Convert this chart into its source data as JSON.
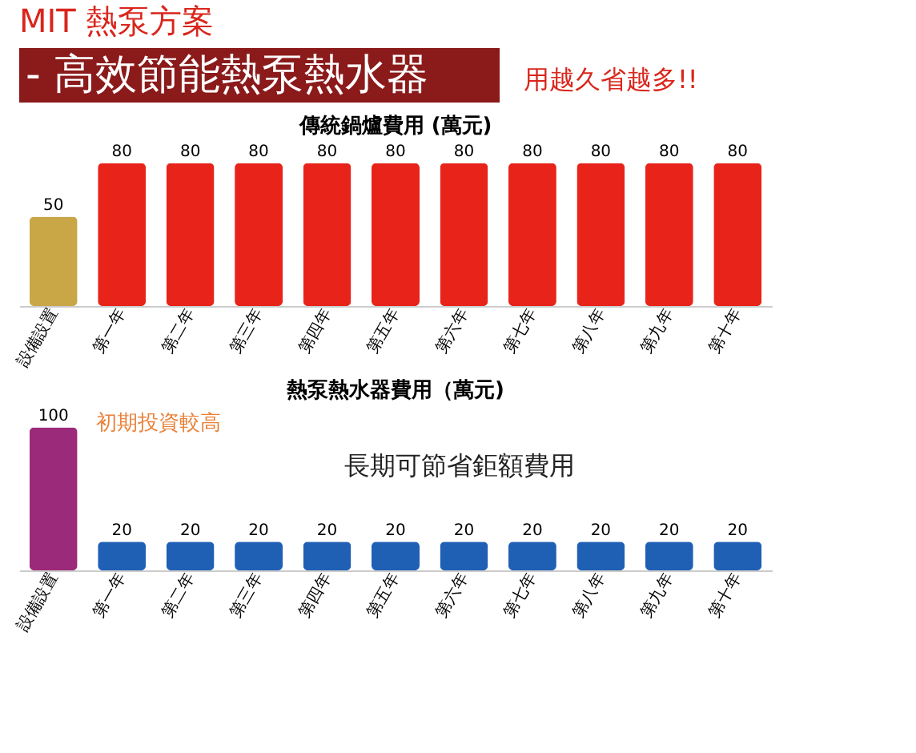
{
  "chart_data": [
    {
      "type": "other",
      "title": "MIT 熱泵方案",
      "subtitle": "- 高效節能熱泵熱水器",
      "annotations": [
        "用越久省越多!!"
      ]
    },
    {
      "type": "bar",
      "title": "傳統鍋爐費用 (萬元)",
      "categories": [
        "設備設置",
        "第一年",
        "第二年",
        "第三年",
        "第四年",
        "第五年",
        "第六年",
        "第七年",
        "第八年",
        "第九年",
        "第十年"
      ],
      "values": [
        50,
        80,
        80,
        80,
        80,
        80,
        80,
        80,
        80,
        80,
        80
      ],
      "colors": [
        "#c9a646",
        "#e8231a",
        "#e8231a",
        "#e8231a",
        "#e8231a",
        "#e8231a",
        "#e8231a",
        "#e8231a",
        "#e8231a",
        "#e8231a",
        "#e8231a"
      ],
      "data_labels": true,
      "tick_labels": "x",
      "grid": false
    },
    {
      "type": "bar",
      "title": "熱泵熱水器費用（萬元)",
      "categories": [
        "設備設置",
        "第一年",
        "第二年",
        "第三年",
        "第四年",
        "第五年",
        "第六年",
        "第七年",
        "第八年",
        "第九年",
        "第十年"
      ],
      "values": [
        100,
        20,
        20,
        20,
        20,
        20,
        20,
        20,
        20,
        20,
        20
      ],
      "colors": [
        "#9c2a7a",
        "#1f5fb4",
        "#1f5fb4",
        "#1f5fb4",
        "#1f5fb4",
        "#1f5fb4",
        "#1f5fb4",
        "#1f5fb4",
        "#1f5fb4",
        "#1f5fb4",
        "#1f5fb4"
      ],
      "data_labels": true,
      "tick_labels": "x",
      "grid": false,
      "annotations": [
        "初期投資較高",
        "長期可節省鉅額費用"
      ]
    }
  ]
}
